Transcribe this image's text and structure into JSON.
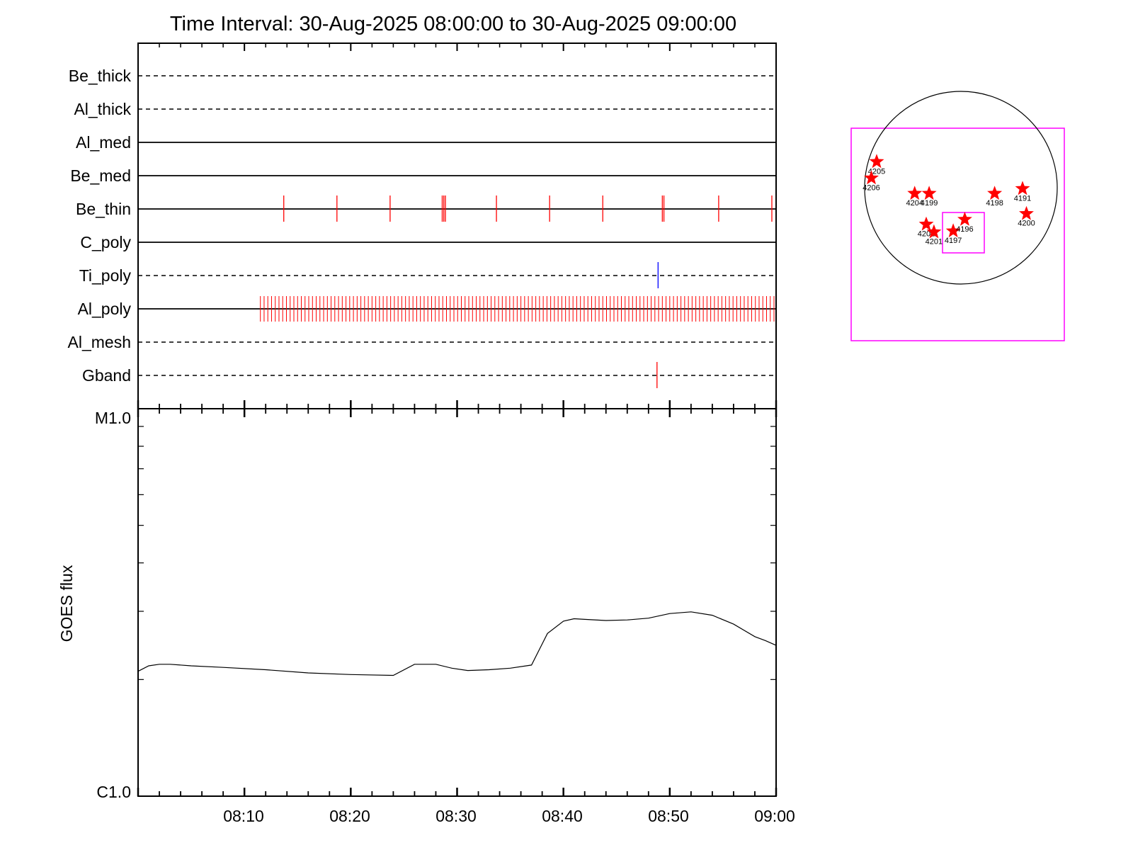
{
  "title": "Time Interval: 30-Aug-2025 08:00:00 to 30-Aug-2025 09:00:00",
  "colors": {
    "axis": "#000000",
    "events": "#ff0000",
    "event_blue": "#0000ff",
    "box": "#ff00ff",
    "star": "#ff0000"
  },
  "chart_data": [
    {
      "type": "timeline",
      "x_range_minutes": [
        0,
        60
      ],
      "rows": [
        {
          "label": "Be_thick",
          "style": "dashed",
          "events": [],
          "tall": []
        },
        {
          "label": "Al_thick",
          "style": "dashed",
          "events": [],
          "tall": []
        },
        {
          "label": "Al_med",
          "style": "solid",
          "events": [],
          "tall": []
        },
        {
          "label": "Be_med",
          "style": "solid",
          "events": [],
          "tall": []
        },
        {
          "label": "Be_thin",
          "style": "solid",
          "events": [],
          "tall": [
            13.7,
            18.7,
            23.7,
            28.6,
            28.75,
            28.9,
            33.7,
            38.7,
            43.7,
            49.3,
            49.45,
            54.6,
            59.6
          ],
          "color": "events"
        },
        {
          "label": "C_poly",
          "style": "solid",
          "events": [],
          "tall": []
        },
        {
          "label": "Ti_poly",
          "style": "dashed",
          "events": [],
          "tall": [
            48.9
          ],
          "color": "event_blue"
        },
        {
          "label": "Al_poly",
          "style": "solid",
          "dense_start": 11.5,
          "dense_end": 60,
          "dense_step": 0.35,
          "tall": [],
          "color": "events"
        },
        {
          "label": "Al_mesh",
          "style": "dashed",
          "events": [],
          "tall": []
        },
        {
          "label": "Gband",
          "style": "dashed",
          "events": [],
          "tall": [
            48.8
          ],
          "color": "events"
        }
      ]
    },
    {
      "type": "line",
      "ylabel": "GOES flux",
      "y_log": true,
      "ylim": [
        1e-06,
        1e-05
      ],
      "y_ticklabels": [
        {
          "value": 1e-05,
          "label": "M1.0"
        },
        {
          "value": 1e-06,
          "label": "C1.0"
        }
      ],
      "x_ticklabels": [
        "08:10",
        "08:20",
        "08:30",
        "08:40",
        "08:50",
        "09:00"
      ],
      "x_tick_minutes": [
        10,
        20,
        30,
        40,
        50,
        60
      ],
      "series": [
        {
          "x_minutes": [
            0,
            1,
            2,
            3,
            5,
            8,
            12,
            16,
            20,
            24,
            26,
            28,
            29.5,
            31,
            33,
            35,
            37,
            38.5,
            40,
            41,
            42,
            44,
            46,
            48,
            50,
            52,
            54,
            56,
            58,
            59,
            60
          ],
          "y": [
            2.1e-06,
            2.17e-06,
            2.19e-06,
            2.19e-06,
            2.17e-06,
            2.15e-06,
            2.12e-06,
            2.08e-06,
            2.06e-06,
            2.05e-06,
            2.19e-06,
            2.19e-06,
            2.14e-06,
            2.11e-06,
            2.12e-06,
            2.14e-06,
            2.18e-06,
            2.63e-06,
            2.83e-06,
            2.87e-06,
            2.86e-06,
            2.84e-06,
            2.85e-06,
            2.88e-06,
            2.96e-06,
            2.99e-06,
            2.93e-06,
            2.78e-06,
            2.58e-06,
            2.52e-06,
            2.45e-06
          ]
        }
      ]
    }
  ],
  "sun_map": {
    "regions": [
      {
        "label": "4205",
        "dx": -0.875,
        "dy": -0.27
      },
      {
        "label": "4206",
        "dx": -0.93,
        "dy": -0.1
      },
      {
        "label": "4204",
        "dx": -0.48,
        "dy": 0.06
      },
      {
        "label": "4199",
        "dx": -0.33,
        "dy": 0.06
      },
      {
        "label": "4198",
        "dx": 0.35,
        "dy": 0.06
      },
      {
        "label": "4191",
        "dx": 0.64,
        "dy": 0.01
      },
      {
        "label": "4200",
        "dx": 0.68,
        "dy": 0.27
      },
      {
        "label": "4202",
        "dx": -0.36,
        "dy": 0.38
      },
      {
        "label": "4201",
        "dx": -0.28,
        "dy": 0.46
      },
      {
        "label": "4197",
        "dx": -0.08,
        "dy": 0.45
      },
      {
        "label": "4196",
        "dx": 0.04,
        "dy": 0.33
      }
    ]
  }
}
